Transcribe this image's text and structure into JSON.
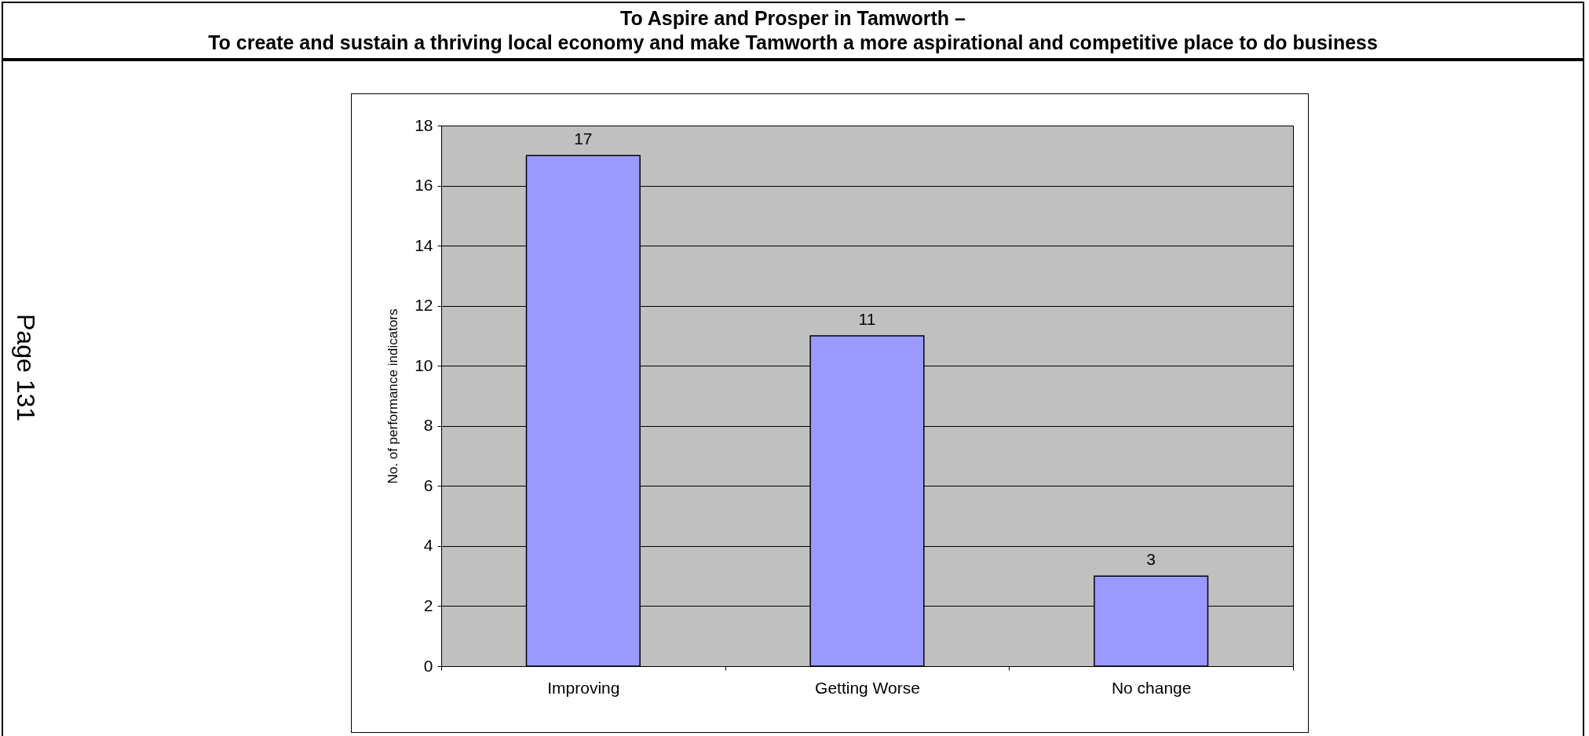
{
  "chart_data": {
    "type": "bar",
    "title": "To Aspire and Prosper in Tamworth –\nTo create and sustain a thriving local economy and make Tamworth a more aspirational and competitive place to do business",
    "ylabel": "No. of performance indicators",
    "categories": [
      "Improving",
      "Getting Worse",
      "No change"
    ],
    "values": [
      17,
      11,
      3
    ],
    "color": "#9999ff",
    "ylim": [
      0,
      18
    ],
    "yticks": [
      0,
      2,
      4,
      6,
      8,
      10,
      12,
      14,
      16,
      18
    ],
    "grid": "y",
    "data_labels": true,
    "annotations": [
      "Page 131"
    ]
  }
}
